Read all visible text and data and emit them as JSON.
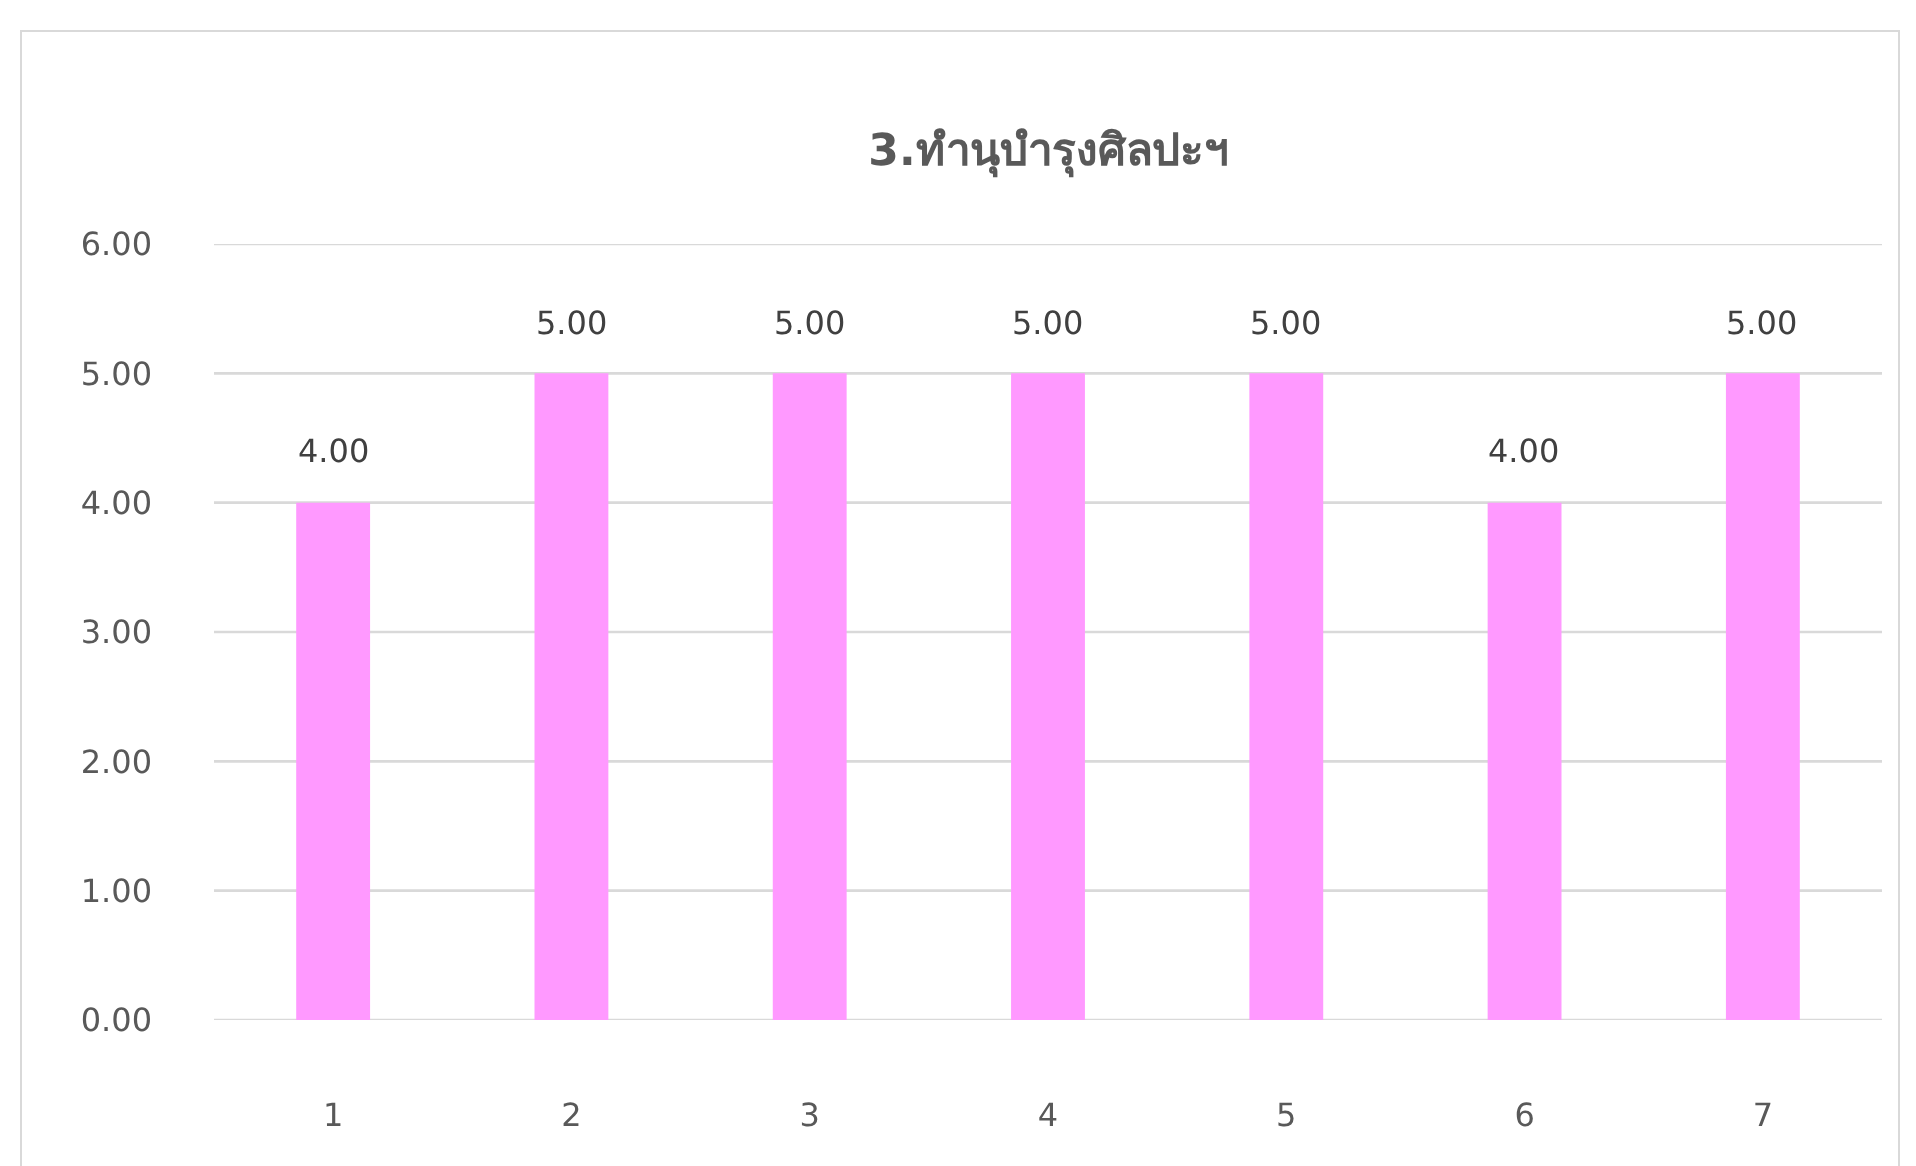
{
  "chart_data": {
    "type": "bar",
    "title": "3.ทำนุบำรุงศิลปะฯ",
    "categories": [
      "1",
      "2",
      "3",
      "4",
      "5",
      "6",
      "7"
    ],
    "values": [
      4,
      5,
      5,
      5,
      5,
      4,
      5
    ],
    "value_labels": [
      "4.00",
      "5.00",
      "5.00",
      "5.00",
      "5.00",
      "4.00",
      "5.00"
    ],
    "color": "#ff99ff",
    "ylim": [
      0,
      6
    ],
    "yticks": [
      {
        "value": 0,
        "label": "0.00"
      },
      {
        "value": 1,
        "label": "1.00"
      },
      {
        "value": 2,
        "label": "2.00"
      },
      {
        "value": 3,
        "label": "3.00"
      },
      {
        "value": 4,
        "label": "4.00"
      },
      {
        "value": 5,
        "label": "5.00"
      },
      {
        "value": 6,
        "label": "6.00"
      }
    ],
    "grid": "y"
  }
}
